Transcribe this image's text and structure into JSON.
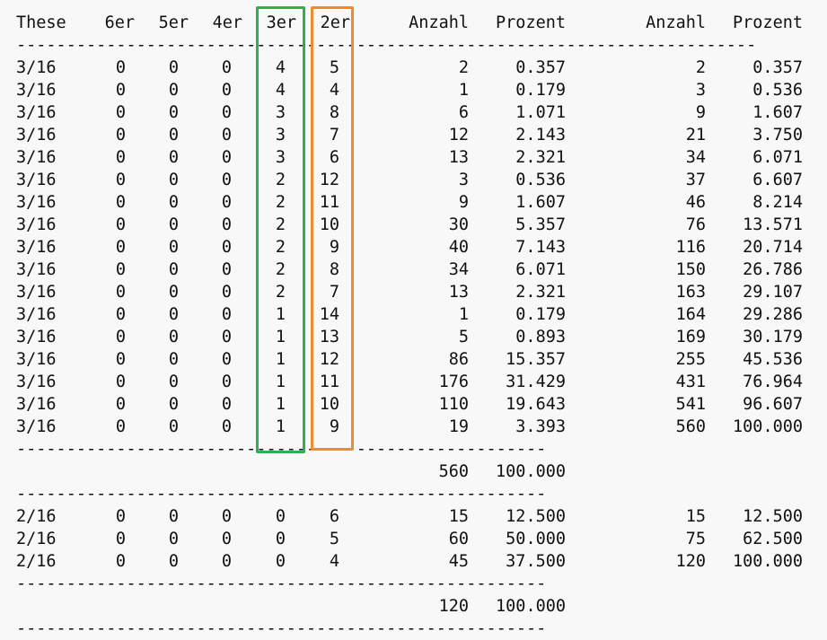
{
  "headers": {
    "these": "These",
    "g6": "6er",
    "g5": "5er",
    "g4": "4er",
    "g3": "3er",
    "g2": "2er",
    "anzahl": "Anzahl",
    "prozent": "Prozent",
    "cum_anzahl": "Anzahl",
    "cum_prozent": "Prozent"
  },
  "separator_long": "--------------------------------------------------------------------------",
  "separator_short": "-----------------------------------------------------",
  "section1": {
    "rows": [
      [
        "3/16",
        "0",
        "0",
        "0",
        "4",
        "5",
        "2",
        "0.357",
        "2",
        "0.357"
      ],
      [
        "3/16",
        "0",
        "0",
        "0",
        "4",
        "4",
        "1",
        "0.179",
        "3",
        "0.536"
      ],
      [
        "3/16",
        "0",
        "0",
        "0",
        "3",
        "8",
        "6",
        "1.071",
        "9",
        "1.607"
      ],
      [
        "3/16",
        "0",
        "0",
        "0",
        "3",
        "7",
        "12",
        "2.143",
        "21",
        "3.750"
      ],
      [
        "3/16",
        "0",
        "0",
        "0",
        "3",
        "6",
        "13",
        "2.321",
        "34",
        "6.071"
      ],
      [
        "3/16",
        "0",
        "0",
        "0",
        "2",
        "12",
        "3",
        "0.536",
        "37",
        "6.607"
      ],
      [
        "3/16",
        "0",
        "0",
        "0",
        "2",
        "11",
        "9",
        "1.607",
        "46",
        "8.214"
      ],
      [
        "3/16",
        "0",
        "0",
        "0",
        "2",
        "10",
        "30",
        "5.357",
        "76",
        "13.571"
      ],
      [
        "3/16",
        "0",
        "0",
        "0",
        "2",
        "9",
        "40",
        "7.143",
        "116",
        "20.714"
      ],
      [
        "3/16",
        "0",
        "0",
        "0",
        "2",
        "8",
        "34",
        "6.071",
        "150",
        "26.786"
      ],
      [
        "3/16",
        "0",
        "0",
        "0",
        "2",
        "7",
        "13",
        "2.321",
        "163",
        "29.107"
      ],
      [
        "3/16",
        "0",
        "0",
        "0",
        "1",
        "14",
        "1",
        "0.179",
        "164",
        "29.286"
      ],
      [
        "3/16",
        "0",
        "0",
        "0",
        "1",
        "13",
        "5",
        "0.893",
        "169",
        "30.179"
      ],
      [
        "3/16",
        "0",
        "0",
        "0",
        "1",
        "12",
        "86",
        "15.357",
        "255",
        "45.536"
      ],
      [
        "3/16",
        "0",
        "0",
        "0",
        "1",
        "11",
        "176",
        "31.429",
        "431",
        "76.964"
      ],
      [
        "3/16",
        "0",
        "0",
        "0",
        "1",
        "10",
        "110",
        "19.643",
        "541",
        "96.607"
      ],
      [
        "3/16",
        "0",
        "0",
        "0",
        "1",
        "9",
        "19",
        "3.393",
        "560",
        "100.000"
      ]
    ],
    "total_anzahl": "560",
    "total_prozent": "100.000"
  },
  "section2": {
    "rows": [
      [
        "2/16",
        "0",
        "0",
        "0",
        "0",
        "6",
        "15",
        "12.500",
        "15",
        "12.500"
      ],
      [
        "2/16",
        "0",
        "0",
        "0",
        "0",
        "5",
        "60",
        "50.000",
        "75",
        "62.500"
      ],
      [
        "2/16",
        "0",
        "0",
        "0",
        "0",
        "4",
        "45",
        "37.500",
        "120",
        "100.000"
      ]
    ],
    "total_anzahl": "120",
    "total_prozent": "100.000"
  },
  "highlight_colors": {
    "col_3er": "#2db14e",
    "col_2er": "#f08a2c"
  }
}
